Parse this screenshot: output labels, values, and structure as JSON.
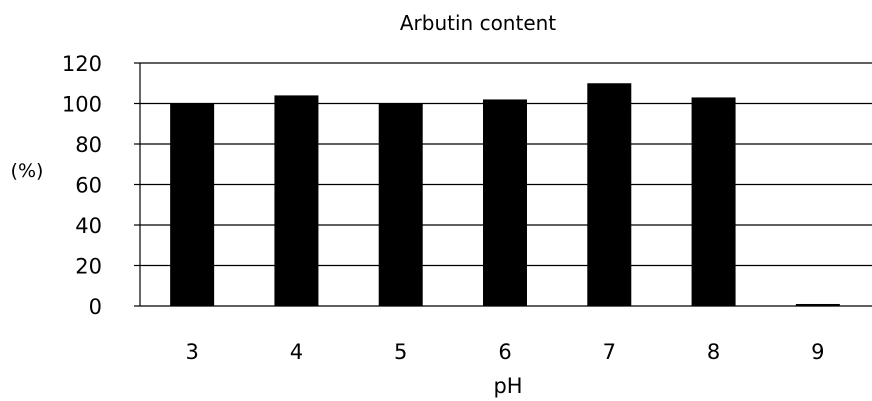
{
  "chart_data": {
    "type": "bar",
    "title": "Arbutin content",
    "xlabel": "pH",
    "ylabel": "(%)",
    "categories": [
      "3",
      "4",
      "5",
      "6",
      "7",
      "8",
      "9"
    ],
    "values": [
      100,
      104,
      100,
      102,
      110,
      103,
      1
    ],
    "ylim": [
      0,
      120
    ],
    "yticks": [
      0,
      20,
      40,
      60,
      80,
      100,
      120
    ],
    "grid": true,
    "legend": "none",
    "bar_color": "#000000",
    "grid_color": "#000000"
  }
}
